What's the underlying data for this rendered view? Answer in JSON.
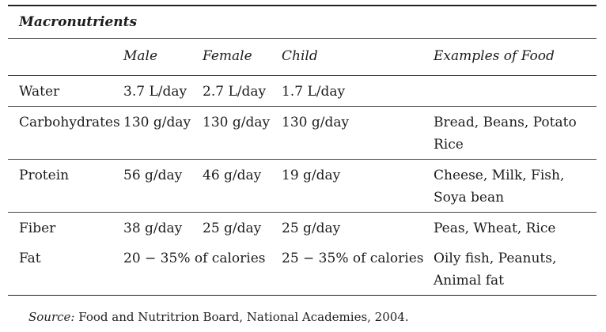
{
  "title": "Macronutrients",
  "columns": [
    "",
    "Male",
    "Female",
    "Child",
    "Examples of Food"
  ],
  "rows": [
    {
      "name": "Water",
      "male": "3.7 L/day",
      "female": "2.7 L/day",
      "child": "1.7 L/day",
      "examples": [
        "",
        ""
      ]
    },
    {
      "name": "Carbohydrates",
      "male": "130 g/day",
      "female": "130 g/day",
      "child": "130 g/day",
      "examples": [
        "Bread, Beans, Potato",
        "Rice"
      ]
    },
    {
      "name": "Protein",
      "male": "56 g/day",
      "female": "46 g/day",
      "child": "19 g/day",
      "examples": [
        "Cheese, Milk, Fish,",
        "Soya bean"
      ]
    },
    {
      "name": "Fiber",
      "male": "38 g/day",
      "female": "25 g/day",
      "child": "25 g/day",
      "examples": [
        "Peas, Wheat, Rice",
        ""
      ]
    },
    {
      "name": "Fat",
      "adult": "20 − 35% of calories",
      "child": "25 − 35% of calories",
      "examples": [
        "Oily fish, Peanuts,",
        "Animal fat"
      ]
    }
  ],
  "source": {
    "label": "Source:",
    "text": "Food and Nutritrion Board, National Academies, 2004."
  }
}
